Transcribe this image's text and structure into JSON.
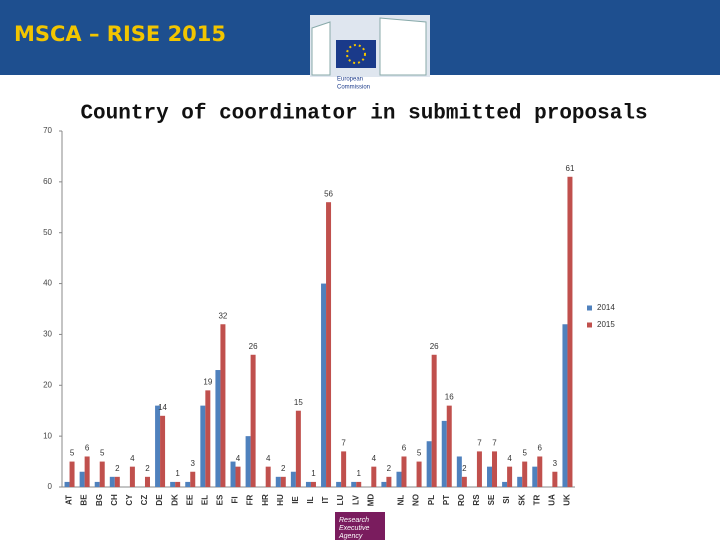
{
  "header": {
    "title": "MSCA – RISE 2015",
    "logo_text": [
      "European",
      "Commission"
    ]
  },
  "footer": {
    "logo_text": [
      "Research",
      "Executive",
      "Agency"
    ]
  },
  "chart_data": {
    "type": "bar",
    "title": "Country of coordinator in submitted proposals",
    "categories": [
      "AT",
      "BE",
      "BG",
      "CH",
      "CY",
      "CZ",
      "DE",
      "DK",
      "EE",
      "EL",
      "ES",
      "FI",
      "FR",
      "HR",
      "HU",
      "IE",
      "IL",
      "IT",
      "LU",
      "LV",
      "MD",
      null,
      "NL",
      "NO",
      "PL",
      "PT",
      "RO",
      "RS",
      "SE",
      "SI",
      "SK",
      "TR",
      "UA",
      "UK"
    ],
    "series": [
      {
        "name": "2014",
        "color": "#4f81bd",
        "values": [
          1,
          3,
          1,
          2,
          0,
          0,
          16,
          1,
          1,
          16,
          23,
          5,
          10,
          0,
          2,
          3,
          1,
          40,
          1,
          1,
          0,
          1,
          3,
          0,
          9,
          13,
          6,
          0,
          4,
          1,
          2,
          4,
          0,
          32
        ]
      },
      {
        "name": "2015",
        "color": "#c0504d",
        "values": [
          5,
          6,
          5,
          2,
          4,
          2,
          14,
          1,
          3,
          19,
          32,
          4,
          26,
          4,
          2,
          15,
          1,
          56,
          7,
          1,
          4,
          2,
          6,
          5,
          26,
          16,
          2,
          7,
          7,
          4,
          5,
          6,
          3,
          61
        ],
        "data_labels": true
      }
    ],
    "ylim": [
      0,
      70
    ],
    "yticks": [
      0,
      10,
      20,
      30,
      40,
      50,
      60,
      70
    ],
    "grid": false,
    "legend": "right"
  }
}
